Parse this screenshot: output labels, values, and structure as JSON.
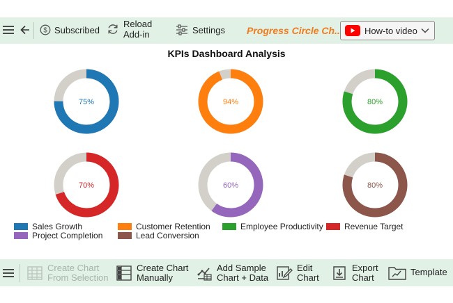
{
  "toolbar": {
    "subscribed_label": "Subscribed",
    "reload_line1": "Reload",
    "reload_line2": "Add-in",
    "settings_label": "Settings",
    "chart_name": "Progress Circle Ch...",
    "howto_label": "How-to video"
  },
  "chart_data": {
    "type": "donut-progress",
    "title": "KPIs Dashboard Analysis",
    "remainder_color": "#d3d0c9",
    "series": [
      {
        "name": "Sales Growth",
        "value": 75,
        "label": "75%",
        "color": "#1f77b4"
      },
      {
        "name": "Customer Retention",
        "value": 94,
        "label": "94%",
        "color": "#ff7f0e"
      },
      {
        "name": "Employee Productivity",
        "value": 80,
        "label": "80%",
        "color": "#2ca02c"
      },
      {
        "name": "Revenue Target",
        "value": 70,
        "label": "70%",
        "color": "#d62728"
      },
      {
        "name": "Project Completion",
        "value": 60,
        "label": "60%",
        "color": "#9467bd"
      },
      {
        "name": "Lead Conversion",
        "value": 80,
        "label": "80%",
        "color": "#8c564b"
      }
    ]
  },
  "bottombar": {
    "create_from_selection_line1": "Create Chart",
    "create_from_selection_line2": "From Selection",
    "create_manually_line1": "Create Chart",
    "create_manually_line2": "Manually",
    "add_sample_line1": "Add Sample",
    "add_sample_line2": "Chart + Data",
    "edit_line1": "Edit",
    "edit_line2": "Chart",
    "export_line1": "Export",
    "export_line2": "Chart",
    "template_label": "Template"
  }
}
